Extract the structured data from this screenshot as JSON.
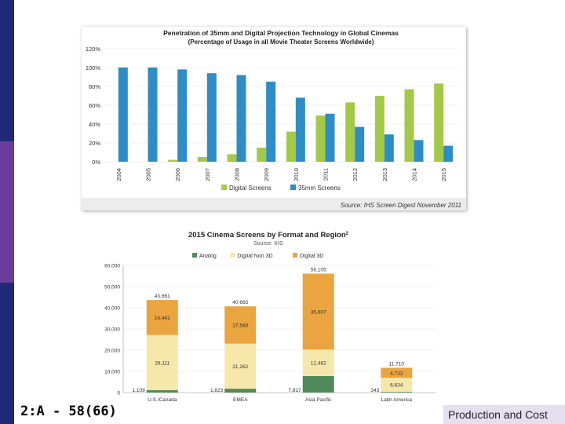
{
  "slide": {
    "footer_left": "2:A - 58(66)",
    "footer_right": "Production and Cost",
    "colors": {
      "sidebar": "#1e2a78",
      "sidebar_band": "#6a3d9a",
      "footer_box": "#e4e0ef"
    }
  },
  "chart_data": [
    {
      "type": "bar",
      "title": "Penetration of 35mm and Digital Projection Technology in Global Cinemas",
      "subtitle": "(Percentage of Usage in all Movie Theater Screens Worldwide)",
      "source": "Source: IHS Screen Digest November 2011",
      "categories": [
        "2004",
        "2005",
        "2006",
        "2007",
        "2008",
        "2009",
        "2010",
        "2011",
        "2012",
        "2013",
        "2014",
        "2015"
      ],
      "series": [
        {
          "name": "Digital Screens",
          "color": "#a4c94a",
          "values": [
            0,
            0,
            2,
            5,
            8,
            15,
            32,
            49,
            63,
            70,
            77,
            83
          ]
        },
        {
          "name": "35mm Screens",
          "color": "#2f8dc4",
          "values": [
            100,
            100,
            98,
            94,
            92,
            85,
            68,
            51,
            37,
            29,
            23,
            17
          ]
        }
      ],
      "ylim": [
        0,
        120
      ],
      "yticks": [
        "0%",
        "20%",
        "40%",
        "60%",
        "80%",
        "100%",
        "120%"
      ],
      "legend": "bottom"
    },
    {
      "type": "bar",
      "stacked": true,
      "title": "2015 Cinema Screens by Format and Region",
      "title_sup": "2",
      "subtitle": "Source: IHS",
      "categories": [
        "U.S./Canada",
        "EMEA",
        "Asia Pacific",
        "Latin America"
      ],
      "series": [
        {
          "name": "Analog",
          "color": "#4f8a5b",
          "values": [
            1109,
            1823,
            7817,
            343
          ],
          "labels": [
            "1,109",
            "1,823",
            "7,817",
            "343"
          ]
        },
        {
          "name": "Digital Non 3D",
          "color": "#f6e7ab",
          "values": [
            26111,
            21262,
            12482,
            6634
          ],
          "labels": [
            "26,111",
            "21,262",
            "12,482",
            "6,634"
          ]
        },
        {
          "name": "Digital 3D",
          "color": "#eaa440",
          "values": [
            16441,
            17580,
            35807,
            4733
          ],
          "labels": [
            "16,441",
            "17,580",
            "35,807",
            "4,733"
          ]
        }
      ],
      "totals": [
        "43,661",
        "40,665",
        "56,105",
        "11,710"
      ],
      "ylim": [
        0,
        60000
      ],
      "yticks": [
        "0",
        "10,000",
        "20,000",
        "30,000",
        "40,000",
        "50,000",
        "60,000"
      ],
      "legend": "top"
    }
  ]
}
